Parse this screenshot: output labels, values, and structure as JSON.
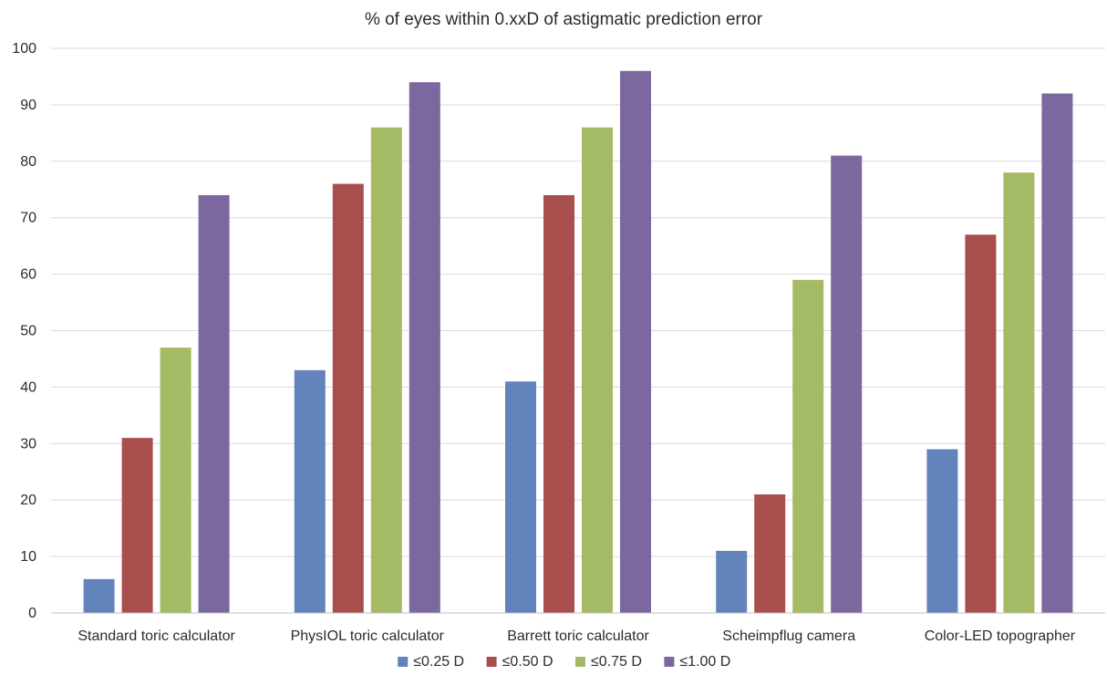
{
  "chart_data": {
    "type": "bar",
    "title": "% of eyes within 0.xxD of astigmatic prediction error",
    "xlabel": "",
    "ylabel": "",
    "ylim": [
      0,
      100
    ],
    "yticks": [
      0,
      10,
      20,
      30,
      40,
      50,
      60,
      70,
      80,
      90,
      100
    ],
    "grid": true,
    "legend_position": "bottom",
    "categories": [
      "Standard toric calculator",
      "PhysIOL toric calculator",
      "Barrett toric calculator",
      "Scheimpflug camera",
      "Color-LED topographer"
    ],
    "series": [
      {
        "name": "≤0.25 D",
        "color": "#6383bc",
        "values": [
          6,
          43,
          41,
          11,
          29
        ]
      },
      {
        "name": "≤0.50 D",
        "color": "#a84f4e",
        "values": [
          31,
          76,
          74,
          21,
          67
        ]
      },
      {
        "name": "≤0.75 D",
        "color": "#a5ba64",
        "values": [
          47,
          86,
          86,
          59,
          78
        ]
      },
      {
        "name": "≤1.00 D",
        "color": "#7a689e",
        "values": [
          74,
          94,
          96,
          81,
          92
        ]
      }
    ]
  }
}
